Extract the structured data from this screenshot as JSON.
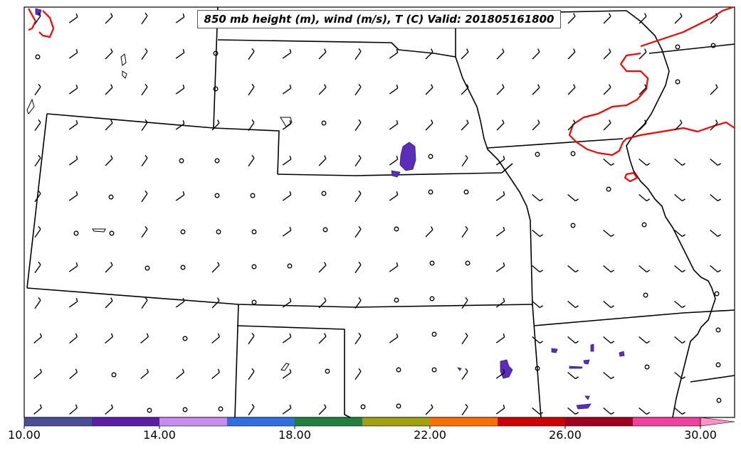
{
  "title": "850 mb height (m), wind (m/s), T (C) Valid: 201805161800",
  "colorbar": {
    "ticks": [
      "10.00",
      "14.00",
      "18.00",
      "22.00",
      "26.00",
      "30.00"
    ],
    "colors": [
      "#4b4c9a",
      "#5b1ea8",
      "#c88cf0",
      "#2f6fe0",
      "#1f8040",
      "#a0a010",
      "#ff7000",
      "#d00000",
      "#a00020",
      "#f040a0"
    ],
    "extend_color": "#ff90c8"
  },
  "colors": {
    "state_border": "#000000",
    "freezing_line": "#ff0000",
    "precip_fill": "#5a2eb8",
    "wind_barb": "#000000"
  },
  "icons": {
    "calm_wind": "circle",
    "wind_barb": "barb-with-flag"
  }
}
